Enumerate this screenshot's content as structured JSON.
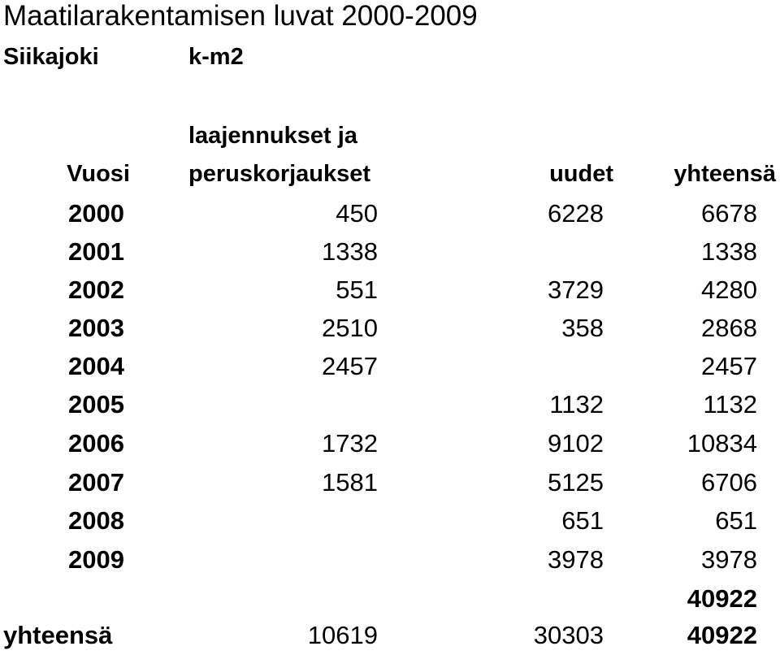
{
  "title": "Maatilarakentamisen luvat 2000-2009",
  "municipality": "Siikajoki",
  "unit": "k-m2",
  "headers": {
    "year": "Vuosi",
    "extensions_line1": "laajennukset ja",
    "extensions_line2": "peruskorjaukset",
    "new": "uudet",
    "total": "yhteensä"
  },
  "rows": [
    {
      "year": "2000",
      "extensions": "450",
      "new": "6228",
      "total": "6678"
    },
    {
      "year": "2001",
      "extensions": "1338",
      "new": "",
      "total": "1338"
    },
    {
      "year": "2002",
      "extensions": "551",
      "new": "3729",
      "total": "4280"
    },
    {
      "year": "2003",
      "extensions": "2510",
      "new": "358",
      "total": "2868"
    },
    {
      "year": "2004",
      "extensions": "2457",
      "new": "",
      "total": "2457"
    },
    {
      "year": "2005",
      "extensions": "",
      "new": "1132",
      "total": "1132"
    },
    {
      "year": "2006",
      "extensions": "1732",
      "new": "9102",
      "total": "10834"
    },
    {
      "year": "2007",
      "extensions": "1581",
      "new": "5125",
      "total": "6706"
    },
    {
      "year": "2008",
      "extensions": "",
      "new": "651",
      "total": "651"
    },
    {
      "year": "2009",
      "extensions": "",
      "new": "3978",
      "total": "3978"
    }
  ],
  "sum_check": "40922",
  "totals": {
    "label": "yhteensä",
    "extensions": "10619",
    "new": "30303",
    "total": "40922"
  }
}
